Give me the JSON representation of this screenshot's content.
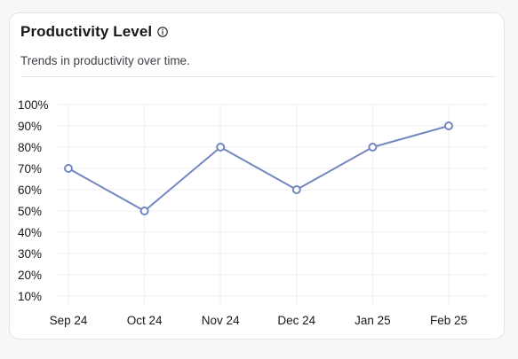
{
  "card": {
    "title": "Productivity Level",
    "subtitle": "Trends in productivity over time.",
    "info_icon": "info-circle-icon"
  },
  "colors": {
    "line": "#7486c0",
    "grid": "#eeeef0",
    "card_border": "#e4e4e7",
    "text": "#18181b"
  },
  "chart_data": {
    "type": "line",
    "title": "Productivity Level",
    "subtitle": "Trends in productivity over time.",
    "xlabel": "",
    "ylabel": "",
    "categories": [
      "Sep 24",
      "Oct 24",
      "Nov 24",
      "Dec 24",
      "Jan 25",
      "Feb 25"
    ],
    "series": [
      {
        "values": [
          70,
          50,
          80,
          60,
          80,
          90
        ]
      }
    ],
    "y_ticks": [
      "100%",
      "90%",
      "80%",
      "70%",
      "60%",
      "50%",
      "40%",
      "30%",
      "20%",
      "10%"
    ],
    "ylim": [
      10,
      100
    ],
    "y_unit": "%",
    "grid": true,
    "legend": "none"
  }
}
